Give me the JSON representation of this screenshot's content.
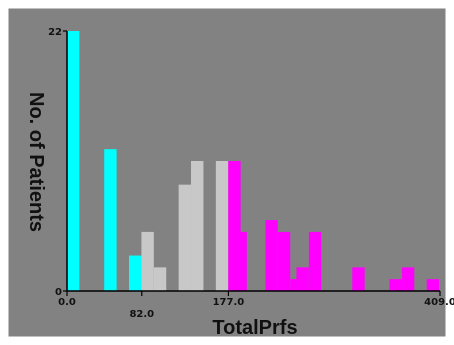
{
  "chart_data": {
    "type": "bar",
    "title": "",
    "xlabel": "TotalPrfs",
    "ylabel": "No. of Patients",
    "xlim": [
      0,
      409
    ],
    "ylim": [
      0,
      22
    ],
    "x_ticks": [
      {
        "value": 0,
        "label": "0.0"
      },
      {
        "value": 82,
        "label": "82.0"
      },
      {
        "value": 177,
        "label": "177.0"
      },
      {
        "value": 409,
        "label": "409.0"
      }
    ],
    "y_ticks": [
      {
        "value": 0,
        "label": "0"
      },
      {
        "value": 22,
        "label": "22"
      }
    ],
    "bin_width": 13.6,
    "grid": false,
    "legend": "none",
    "colors": {
      "background": "#828282",
      "border": "#ffffff",
      "axis": "#000000",
      "cyan": "#00ffff",
      "grey": "#c8c8c8",
      "magenta": "#ff00ff"
    },
    "series": [
      {
        "color_key": "cyan",
        "bins": [
          {
            "x0": 0,
            "count": 22
          },
          {
            "x0": 40.8,
            "count": 12
          },
          {
            "x0": 68,
            "count": 3
          }
        ]
      },
      {
        "color_key": "grey",
        "bins": [
          {
            "x0": 81.6,
            "count": 5
          },
          {
            "x0": 95.2,
            "count": 2
          },
          {
            "x0": 122.4,
            "count": 9
          },
          {
            "x0": 136,
            "count": 11
          },
          {
            "x0": 163.2,
            "count": 11
          }
        ]
      },
      {
        "color_key": "magenta",
        "bins": [
          {
            "x0": 176.8,
            "count": 11
          },
          {
            "x0": 183.6,
            "count": 5
          },
          {
            "x0": 217.6,
            "count": 6
          },
          {
            "x0": 231.2,
            "count": 5
          },
          {
            "x0": 244.8,
            "count": 1
          },
          {
            "x0": 251.6,
            "count": 2
          },
          {
            "x0": 265.2,
            "count": 5
          },
          {
            "x0": 312.8,
            "count": 2
          },
          {
            "x0": 353.6,
            "count": 1
          },
          {
            "x0": 367.2,
            "count": 2
          },
          {
            "x0": 394.4,
            "count": 1
          }
        ]
      }
    ]
  }
}
